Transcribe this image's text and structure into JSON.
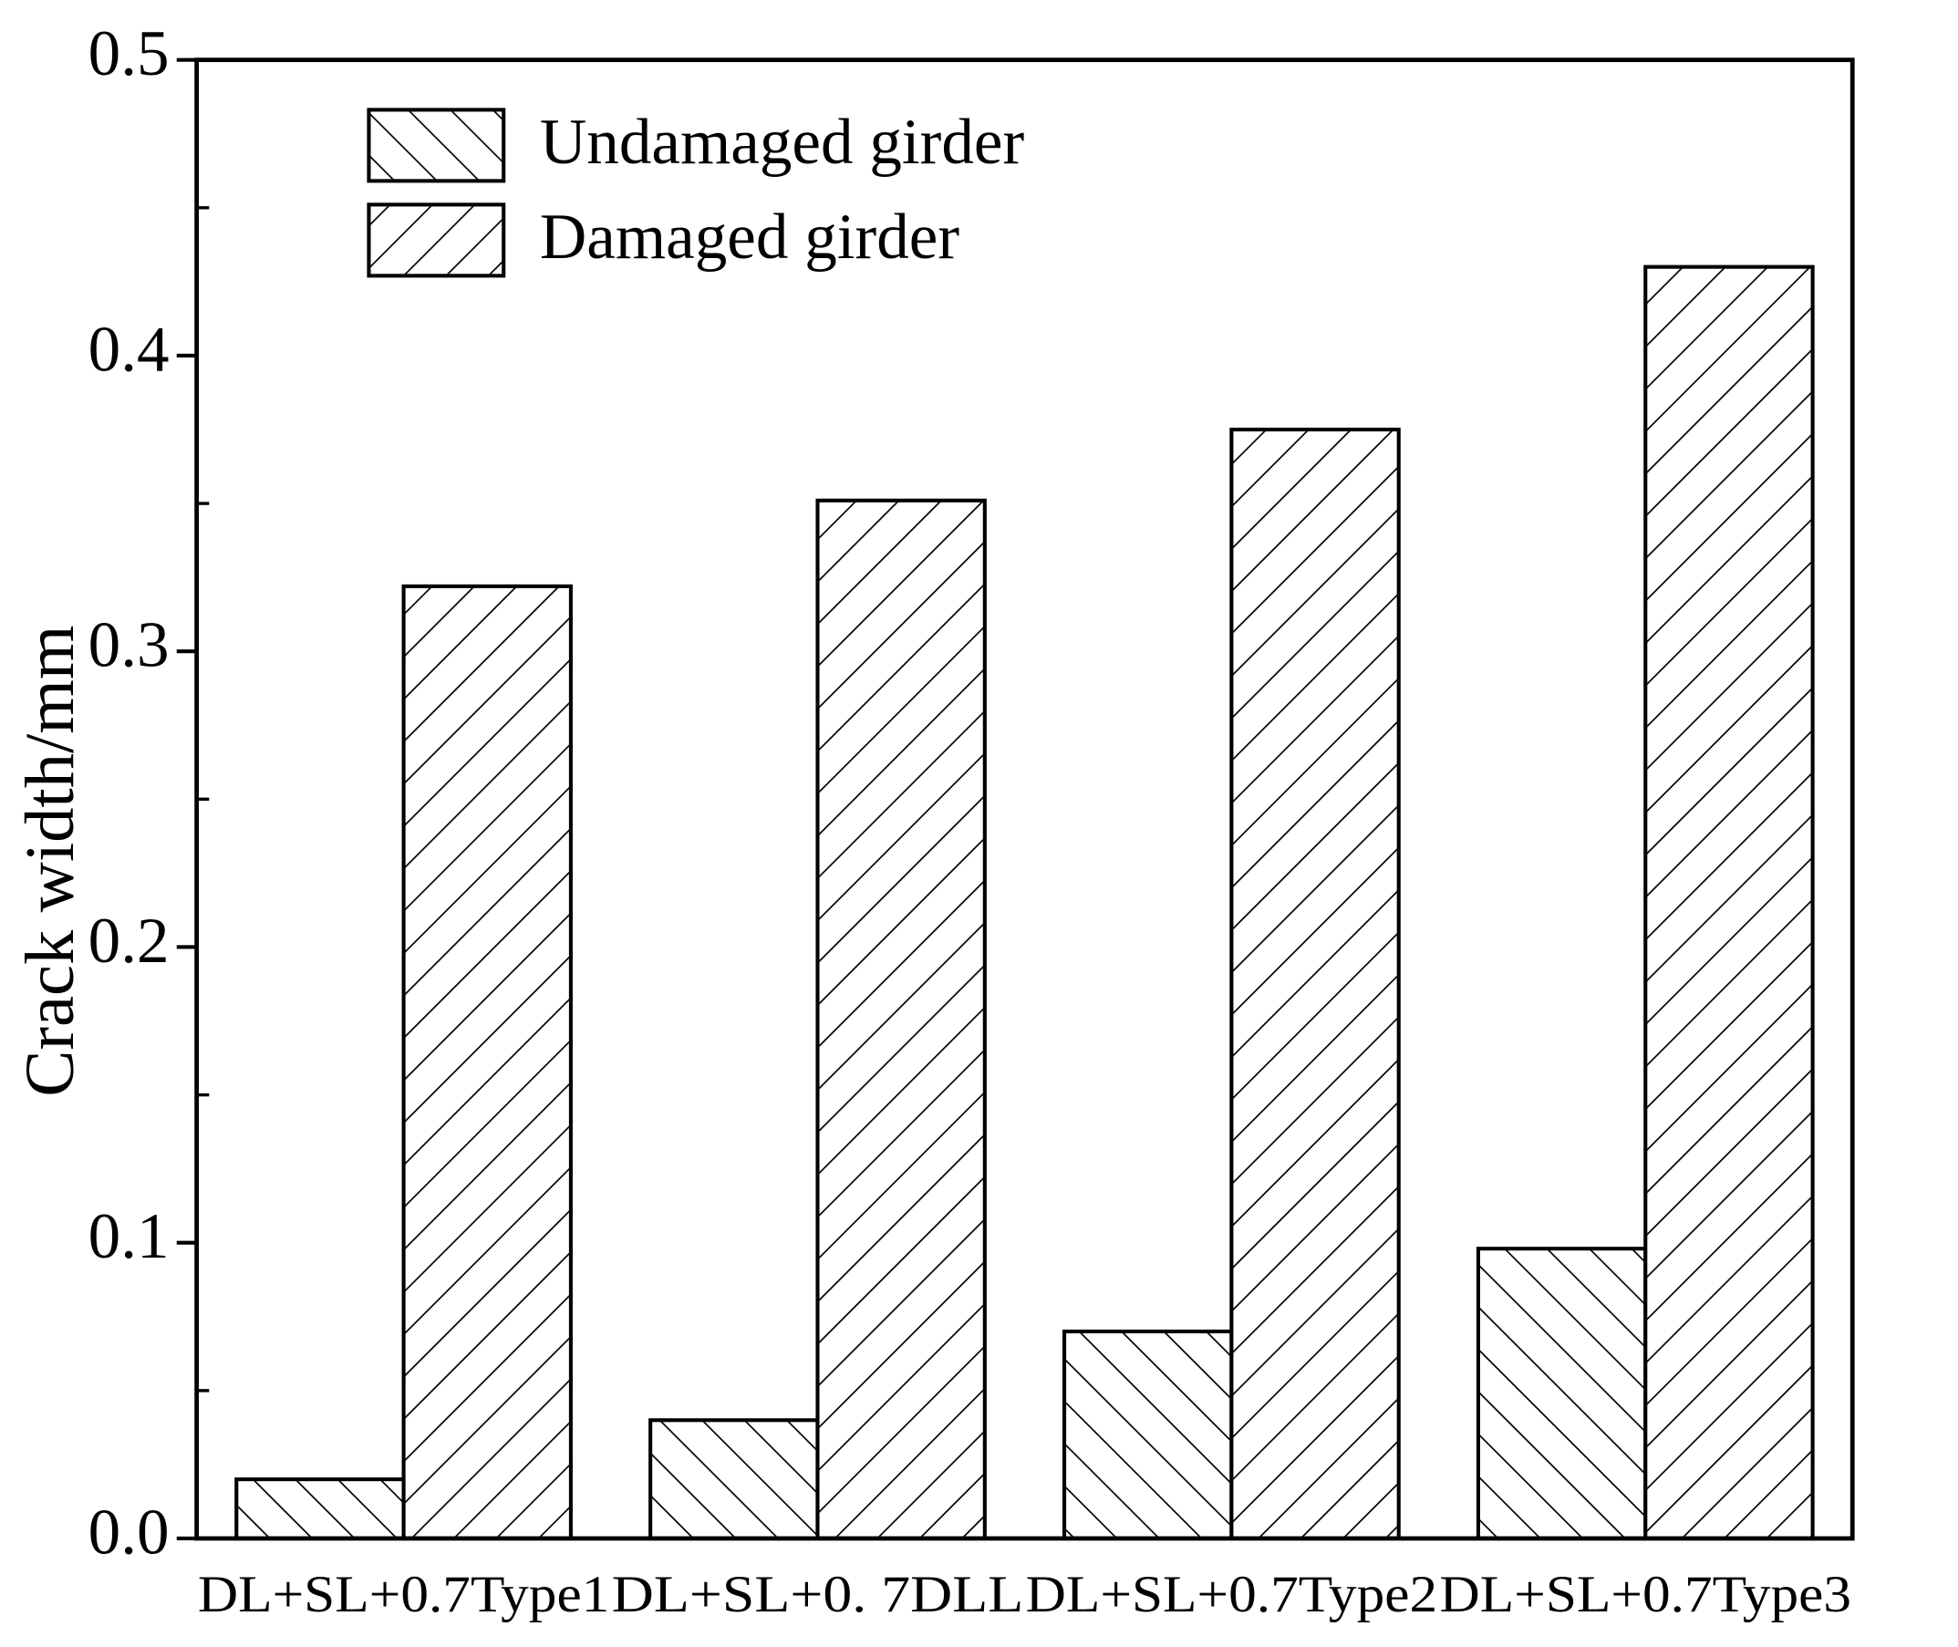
{
  "chart_data": {
    "type": "bar",
    "y_label": "Crack width/mm",
    "categories": [
      "DL+SL+0.7Type1",
      "DL+SL+0. 7DLL",
      "DL+SL+0.7Type2",
      "DL+SL+0.7Type3"
    ],
    "series": [
      {
        "name": "Undamaged girder",
        "color": "#000000",
        "hatch": "backslash",
        "values": [
          0.02,
          0.04,
          0.07,
          0.098
        ]
      },
      {
        "name": "Damaged girder",
        "color": "#000000",
        "hatch": "slash",
        "values": [
          0.322,
          0.351,
          0.375,
          0.43
        ]
      }
    ],
    "ylim": [
      0,
      0.5
    ],
    "yticks": [
      {
        "value": 0,
        "label": "0.0"
      },
      0.1,
      0.2,
      0.3,
      0.4,
      0.5
    ],
    "legend": "upper left",
    "grid": false
  }
}
